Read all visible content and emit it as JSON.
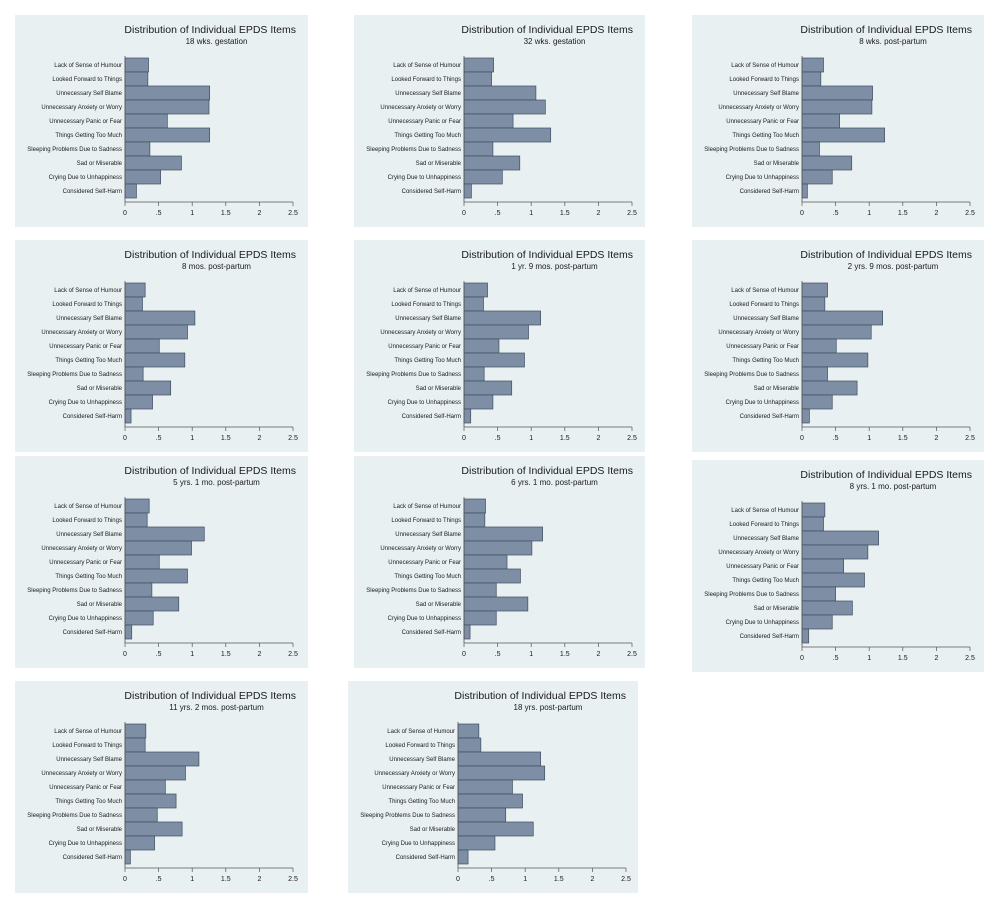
{
  "chart_data": [
    {
      "type": "bar",
      "orientation": "horizontal",
      "title": "Distribution of Individual EPDS Items",
      "subtitle": "18 wks. gestation",
      "categories": [
        "Lack of Sense of Humour",
        "Looked Forward to Things",
        "Unnecessary Self Blame",
        "Unnecessary Anxiety or Worry",
        "Unnecessary Panic or Fear",
        "Things Getting Too Much",
        "Sleeping Problems Due to Sadness",
        "Sad or Miserable",
        "Crying Due to Unhappiness",
        "Considered Self-Harm"
      ],
      "values": [
        0.35,
        0.34,
        1.26,
        1.25,
        0.63,
        1.26,
        0.37,
        0.84,
        0.53,
        0.17
      ],
      "xticks": [
        "0",
        ".5",
        "1",
        "1.5",
        "2",
        "2.5"
      ],
      "xlim": [
        0,
        2.5
      ]
    },
    {
      "type": "bar",
      "orientation": "horizontal",
      "title": "Distribution of Individual EPDS Items",
      "subtitle": "32 wks. gestation",
      "categories": [
        "Lack of Sense of Humour",
        "Looked Forward to Things",
        "Unnecessary Self Blame",
        "Unnecessary Anxiety or Worry",
        "Unnecessary Panic or Fear",
        "Things Getting Too Much",
        "Sleeping Problems Due to Sadness",
        "Sad or Miserable",
        "Crying Due to Unhappiness",
        "Considered Self-Harm"
      ],
      "values": [
        0.44,
        0.41,
        1.07,
        1.21,
        0.73,
        1.29,
        0.43,
        0.83,
        0.57,
        0.11
      ],
      "xticks": [
        "0",
        ".5",
        "1",
        "1.5",
        "2",
        "2.5"
      ],
      "xlim": [
        0,
        2.5
      ]
    },
    {
      "type": "bar",
      "orientation": "horizontal",
      "title": "Distribution of Individual EPDS Items",
      "subtitle": "8 wks. post-partum",
      "categories": [
        "Lack of Sense of Humour",
        "Looked Forward to Things",
        "Unnecessary Self Blame",
        "Unnecessary Anxiety or Worry",
        "Unnecessary Panic or Fear",
        "Things Getting Too Much",
        "Sleeping Problems Due to Sadness",
        "Sad or Miserable",
        "Crying Due to Unhappiness",
        "Considered Self-Harm"
      ],
      "values": [
        0.32,
        0.28,
        1.05,
        1.04,
        0.56,
        1.23,
        0.26,
        0.74,
        0.45,
        0.08
      ],
      "xticks": [
        "0",
        ".5",
        "1",
        "1.5",
        "2",
        "2.5"
      ],
      "xlim": [
        0,
        2.5
      ]
    },
    {
      "type": "bar",
      "orientation": "horizontal",
      "title": "Distribution of Individual EPDS Items",
      "subtitle": "8 mos. post-partum",
      "categories": [
        "Lack of Sense of Humour",
        "Looked Forward to Things",
        "Unnecessary Self Blame",
        "Unnecessary Anxiety or Worry",
        "Unnecessary Panic or Fear",
        "Things Getting Too Much",
        "Sleeping Problems Due to Sadness",
        "Sad or Miserable",
        "Crying Due to Unhappiness",
        "Considered Self-Harm"
      ],
      "values": [
        0.3,
        0.26,
        1.04,
        0.93,
        0.51,
        0.89,
        0.27,
        0.68,
        0.41,
        0.09
      ],
      "xticks": [
        "0",
        ".5",
        "1",
        "1.5",
        "2",
        "2.5"
      ],
      "xlim": [
        0,
        2.5
      ]
    },
    {
      "type": "bar",
      "orientation": "horizontal",
      "title": "Distribution of Individual EPDS Items",
      "subtitle": "1 yr. 9 mos. post-partum",
      "categories": [
        "Lack of Sense of Humour",
        "Looked Forward to Things",
        "Unnecessary Self Blame",
        "Unnecessary Anxiety or Worry",
        "Unnecessary Panic or Fear",
        "Things Getting Too Much",
        "Sleeping Problems Due to Sadness",
        "Sad or Miserable",
        "Crying Due to Unhappiness",
        "Considered Self-Harm"
      ],
      "values": [
        0.35,
        0.29,
        1.14,
        0.96,
        0.52,
        0.9,
        0.3,
        0.71,
        0.43,
        0.1
      ],
      "xticks": [
        "0",
        ".5",
        "1",
        "1.5",
        "2",
        "2.5"
      ],
      "xlim": [
        0,
        2.5
      ]
    },
    {
      "type": "bar",
      "orientation": "horizontal",
      "title": "Distribution of Individual EPDS Items",
      "subtitle": "2 yrs. 9 mos. post-partum",
      "categories": [
        "Lack of Sense of Humour",
        "Looked Forward to Things",
        "Unnecessary Self Blame",
        "Unnecessary Anxiety or Worry",
        "Unnecessary Panic or Fear",
        "Things Getting Too Much",
        "Sleeping Problems Due to Sadness",
        "Sad or Miserable",
        "Crying Due to Unhappiness",
        "Considered Self-Harm"
      ],
      "values": [
        0.38,
        0.34,
        1.2,
        1.03,
        0.51,
        0.98,
        0.38,
        0.82,
        0.45,
        0.11
      ],
      "xticks": [
        "0",
        ".5",
        "1",
        "1.5",
        "2",
        "2.5"
      ],
      "xlim": [
        0,
        2.5
      ]
    },
    {
      "type": "bar",
      "orientation": "horizontal",
      "title": "Distribution of Individual EPDS Items",
      "subtitle": "5 yrs. 1 mo. post-partum",
      "categories": [
        "Lack of Sense of Humour",
        "Looked Forward to Things",
        "Unnecessary Self Blame",
        "Unnecessary Anxiety or Worry",
        "Unnecessary Panic or Fear",
        "Things Getting Too Much",
        "Sleeping Problems Due to Sadness",
        "Sad or Miserable",
        "Crying Due to Unhappiness",
        "Considered Self-Harm"
      ],
      "values": [
        0.36,
        0.33,
        1.18,
        0.99,
        0.51,
        0.93,
        0.4,
        0.8,
        0.42,
        0.1
      ],
      "xticks": [
        "0",
        ".5",
        "1",
        "1.5",
        "2",
        "2.5"
      ],
      "xlim": [
        0,
        2.5
      ]
    },
    {
      "type": "bar",
      "orientation": "horizontal",
      "title": "Distribution of Individual EPDS Items",
      "subtitle": "6 yrs. 1 mo. post-partum",
      "categories": [
        "Lack of Sense of Humour",
        "Looked Forward to Things",
        "Unnecessary Self Blame",
        "Unnecessary Anxiety or Worry",
        "Unnecessary Panic or Fear",
        "Things Getting Too Much",
        "Sleeping Problems Due to Sadness",
        "Sad or Miserable",
        "Crying Due to Unhappiness",
        "Considered Self-Harm"
      ],
      "values": [
        0.32,
        0.31,
        1.17,
        1.01,
        0.64,
        0.84,
        0.48,
        0.95,
        0.48,
        0.09
      ],
      "xticks": [
        "0",
        ".5",
        "1",
        "1.5",
        "2",
        "2.5"
      ],
      "xlim": [
        0,
        2.5
      ]
    },
    {
      "type": "bar",
      "orientation": "horizontal",
      "title": "Distribution of Individual EPDS Items",
      "subtitle": "8 yrs. 1 mo. post-partum",
      "categories": [
        "Lack of Sense of Humour",
        "Looked Forward to Things",
        "Unnecessary Self Blame",
        "Unnecessary Anxiety or Worry",
        "Unnecessary Panic or Fear",
        "Things Getting Too Much",
        "Sleeping Problems Due to Sadness",
        "Sad or Miserable",
        "Crying Due to Unhappiness",
        "Considered Self-Harm"
      ],
      "values": [
        0.34,
        0.32,
        1.14,
        0.98,
        0.62,
        0.93,
        0.5,
        0.75,
        0.45,
        0.1
      ],
      "xticks": [
        "0",
        ".5",
        "1",
        "1.5",
        "2",
        "2.5"
      ],
      "xlim": [
        0,
        2.5
      ]
    },
    {
      "type": "bar",
      "orientation": "horizontal",
      "title": "Distribution of Individual EPDS Items",
      "subtitle": "11 yrs. 2 mos. post-partum",
      "categories": [
        "Lack of Sense of Humour",
        "Looked Forward to Things",
        "Unnecessary Self Blame",
        "Unnecessary Anxiety or Worry",
        "Unnecessary Panic or Fear",
        "Things Getting Too Much",
        "Sleeping Problems Due to Sadness",
        "Sad or Miserable",
        "Crying Due to Unhappiness",
        "Considered Self-Harm"
      ],
      "values": [
        0.31,
        0.3,
        1.1,
        0.9,
        0.6,
        0.76,
        0.48,
        0.85,
        0.44,
        0.08
      ],
      "xticks": [
        "0",
        ".5",
        "1",
        "1.5",
        "2",
        "2.5"
      ],
      "xlim": [
        0,
        2.5
      ]
    },
    {
      "type": "bar",
      "orientation": "horizontal",
      "title": "Distribution of Individual EPDS Items",
      "subtitle": "18 yrs. post-partum",
      "categories": [
        "Lack of Sense of Humour",
        "Looked Forward to Things",
        "Unnecessary Self Blame",
        "Unnecessary Anxiety or Worry",
        "Unnecessary Panic or Fear",
        "Things Getting Too Much",
        "Sleeping Problems Due to Sadness",
        "Sad or Miserable",
        "Crying Due to Unhappiness",
        "Considered Self-Harm"
      ],
      "values": [
        0.31,
        0.34,
        1.23,
        1.29,
        0.81,
        0.96,
        0.71,
        1.12,
        0.55,
        0.15
      ],
      "xticks": [
        "0",
        ".5",
        "1",
        "1.5",
        "2",
        "2.5"
      ],
      "xlim": [
        0,
        2.5
      ]
    }
  ]
}
